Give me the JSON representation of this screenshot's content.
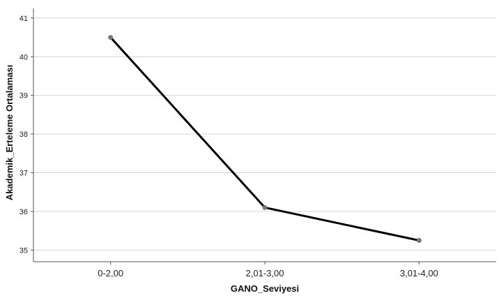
{
  "chart_data": {
    "type": "line",
    "categories": [
      "0-2,00",
      "2,01-3,00",
      "3,01-4,00"
    ],
    "values": [
      40.5,
      36.1,
      35.25
    ],
    "ylim": [
      34.7,
      41.25
    ],
    "yticks": [
      "35",
      "36",
      "37",
      "38",
      "39",
      "40",
      "41"
    ],
    "xlabel": "GANO_Seviyesi",
    "ylabel": "Akademik_Erteleme Ortalaması",
    "grid": "horizontal",
    "colors": {
      "line": "#000000",
      "marker": "#777777",
      "grid": "#d4d4d4",
      "axis": "#555555"
    }
  }
}
